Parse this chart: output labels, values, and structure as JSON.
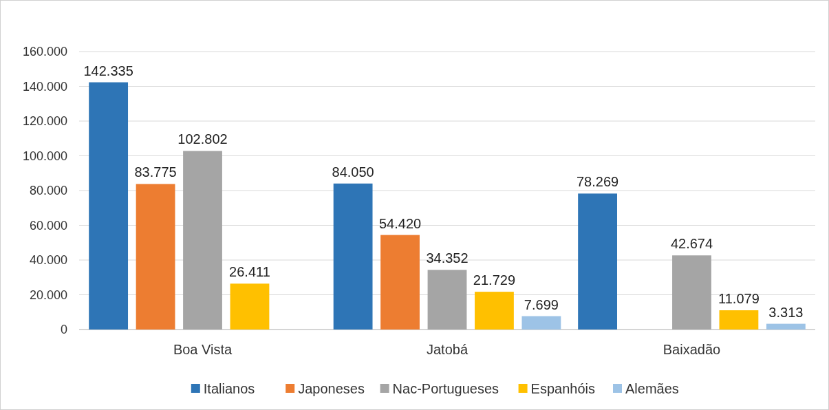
{
  "chart_data": {
    "type": "bar",
    "categories": [
      "Boa Vista",
      "Jatobá",
      "Baixadão"
    ],
    "series": [
      {
        "name": "Italianos",
        "color": "#2e75b6",
        "values": [
          142335,
          84050,
          78269
        ],
        "value_labels": [
          "142.335",
          "84.050",
          "78.269"
        ]
      },
      {
        "name": "Japoneses",
        "color": "#ed7d31",
        "values": [
          83775,
          54420,
          null
        ],
        "value_labels": [
          "83.775",
          "54.420",
          null
        ]
      },
      {
        "name": "Nac-Portugueses",
        "color": "#a5a5a5",
        "values": [
          102802,
          34352,
          42674
        ],
        "value_labels": [
          "102.802",
          "34.352",
          "42.674"
        ]
      },
      {
        "name": "Espanhóis",
        "color": "#ffc000",
        "values": [
          26411,
          21729,
          11079
        ],
        "value_labels": [
          "26.411",
          "21.729",
          "11.079"
        ]
      },
      {
        "name": "Alemães",
        "color": "#9dc3e6",
        "values": [
          null,
          7699,
          3313
        ],
        "value_labels": [
          null,
          "7.699",
          "3.313"
        ]
      }
    ],
    "ylim": [
      0,
      160000
    ],
    "yticks": [
      0,
      {
        "value": 20000,
        "label": "20.000"
      },
      {
        "value": 40000,
        "label": "40.000"
      },
      {
        "value": 60000,
        "label": "60.000"
      },
      {
        "value": 80000,
        "label": "80.000"
      },
      {
        "value": 100000,
        "label": "100.000"
      },
      {
        "value": 120000,
        "label": "120.000"
      },
      {
        "value": 140000,
        "label": "140.000"
      },
      {
        "value": 160000,
        "label": "160.000"
      }
    ],
    "grid": "y",
    "legend": "bottom"
  }
}
